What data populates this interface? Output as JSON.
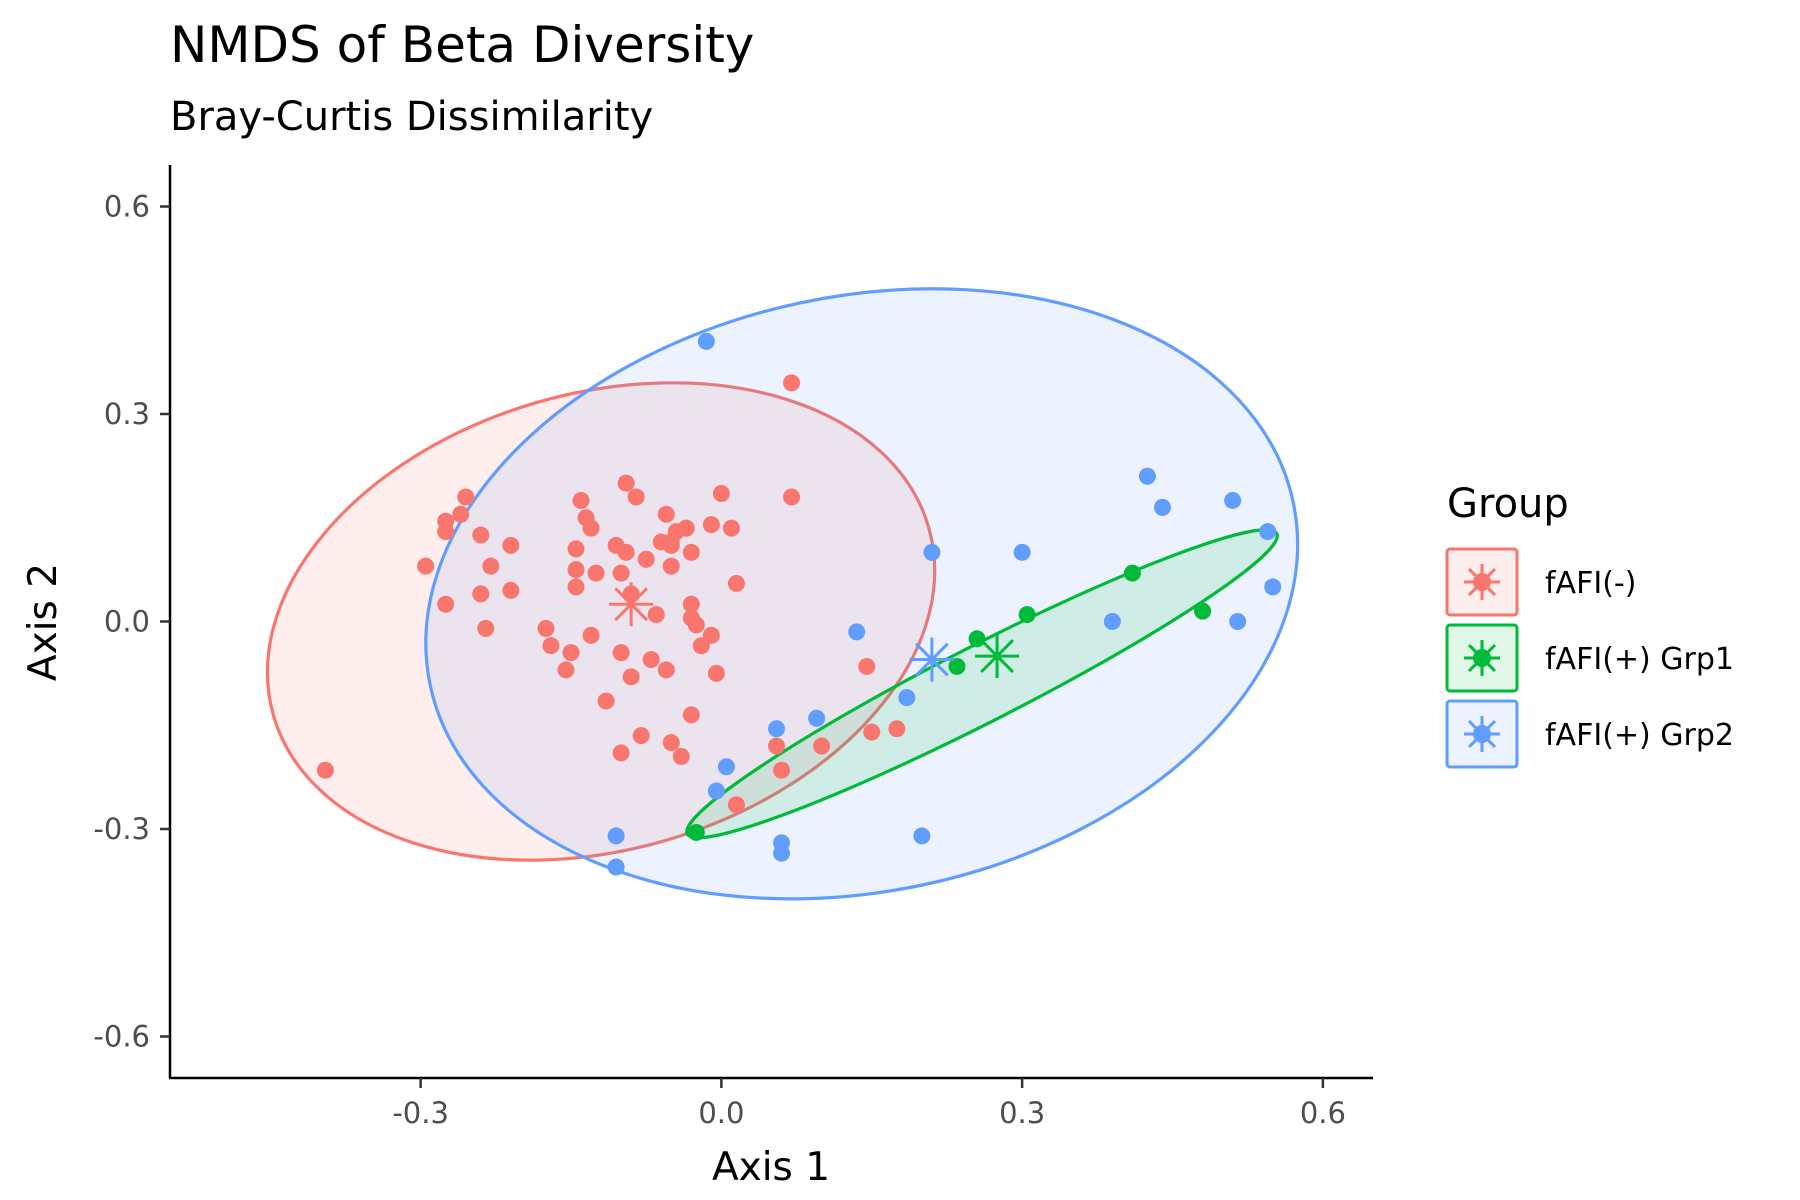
{
  "chart_data": {
    "type": "scatter",
    "title": "NMDS of Beta Diversity",
    "subtitle": "Bray-Curtis Dissimilarity",
    "xlabel": "Axis 1",
    "ylabel": "Axis 2",
    "xlim": [
      -0.55,
      0.65
    ],
    "ylim": [
      -0.66,
      0.66
    ],
    "xticks": [
      -0.3,
      0.0,
      0.3,
      0.6
    ],
    "xtick_labels": [
      "-0.3",
      "0.0",
      "0.3",
      "0.6"
    ],
    "yticks": [
      -0.6,
      -0.3,
      0.0,
      0.3,
      0.6
    ],
    "ytick_labels": [
      "-0.6",
      "-0.3",
      "0.0",
      "0.3",
      "0.6"
    ],
    "grid": false,
    "legend": {
      "title": "Group",
      "position": "right"
    },
    "series": [
      {
        "name": "fAFI(-)",
        "color": "#F8766D",
        "centroid": [
          -0.09,
          0.025
        ],
        "ellipse": {
          "center": [
            -0.12,
            0.0
          ],
          "rx": 0.34,
          "ry": 0.33,
          "angle_deg": 16
        },
        "points": [
          [
            -0.295,
            0.08
          ],
          [
            -0.275,
            0.145
          ],
          [
            -0.275,
            0.13
          ],
          [
            -0.26,
            0.155
          ],
          [
            -0.255,
            0.18
          ],
          [
            -0.24,
            0.125
          ],
          [
            -0.23,
            0.08
          ],
          [
            -0.21,
            0.11
          ],
          [
            -0.275,
            0.025
          ],
          [
            -0.24,
            0.04
          ],
          [
            -0.235,
            -0.01
          ],
          [
            -0.21,
            0.045
          ],
          [
            -0.175,
            -0.01
          ],
          [
            -0.17,
            -0.035
          ],
          [
            -0.155,
            -0.07
          ],
          [
            -0.15,
            -0.045
          ],
          [
            -0.145,
            0.105
          ],
          [
            -0.145,
            0.075
          ],
          [
            -0.145,
            0.05
          ],
          [
            -0.14,
            0.175
          ],
          [
            -0.135,
            0.15
          ],
          [
            -0.13,
            0.135
          ],
          [
            -0.13,
            -0.02
          ],
          [
            -0.125,
            0.07
          ],
          [
            -0.115,
            -0.115
          ],
          [
            -0.105,
            0.11
          ],
          [
            -0.1,
            0.07
          ],
          [
            -0.1,
            -0.045
          ],
          [
            -0.095,
            0.2
          ],
          [
            -0.095,
            0.1
          ],
          [
            -0.09,
            0.04
          ],
          [
            -0.09,
            -0.08
          ],
          [
            -0.085,
            0.18
          ],
          [
            -0.08,
            -0.165
          ],
          [
            -0.1,
            -0.19
          ],
          [
            -0.075,
            0.09
          ],
          [
            -0.07,
            -0.055
          ],
          [
            -0.065,
            0.01
          ],
          [
            -0.06,
            0.115
          ],
          [
            -0.055,
            0.155
          ],
          [
            -0.055,
            -0.07
          ],
          [
            -0.05,
            -0.175
          ],
          [
            -0.05,
            0.08
          ],
          [
            -0.05,
            0.11
          ],
          [
            -0.045,
            0.13
          ],
          [
            -0.04,
            -0.195
          ],
          [
            -0.035,
            0.135
          ],
          [
            -0.03,
            0.1
          ],
          [
            -0.03,
            0.025
          ],
          [
            -0.03,
            0.005
          ],
          [
            -0.025,
            -0.005
          ],
          [
            -0.03,
            -0.135
          ],
          [
            -0.02,
            -0.035
          ],
          [
            -0.01,
            -0.02
          ],
          [
            -0.01,
            0.14
          ],
          [
            -0.005,
            -0.075
          ],
          [
            0.0,
            0.185
          ],
          [
            0.01,
            0.135
          ],
          [
            0.015,
            0.055
          ],
          [
            0.07,
            0.345
          ],
          [
            0.07,
            0.18
          ],
          [
            -0.395,
            -0.215
          ],
          [
            0.055,
            -0.18
          ],
          [
            0.06,
            -0.215
          ],
          [
            0.015,
            -0.265
          ],
          [
            0.1,
            -0.18
          ],
          [
            0.145,
            -0.065
          ],
          [
            0.15,
            -0.16
          ],
          [
            0.175,
            -0.155
          ],
          [
            -0.05,
            0.115
          ]
        ]
      },
      {
        "name": "fAFI(+) Grp1",
        "color": "#00BA38",
        "centroid": [
          0.275,
          -0.05
        ],
        "ellipse": {
          "center": [
            0.26,
            -0.09
          ],
          "rx": 0.33,
          "ry": 0.055,
          "angle_deg": 27
        },
        "points": [
          [
            -0.025,
            -0.305
          ],
          [
            0.235,
            -0.065
          ],
          [
            0.255,
            -0.025
          ],
          [
            0.305,
            0.01
          ],
          [
            0.41,
            0.07
          ],
          [
            0.48,
            0.015
          ]
        ]
      },
      {
        "name": "fAFI(+) Grp2",
        "color": "#619CFF",
        "centroid": [
          0.21,
          -0.055
        ],
        "ellipse": {
          "center": [
            0.14,
            0.04
          ],
          "rx": 0.44,
          "ry": 0.43,
          "angle_deg": 12
        },
        "points": [
          [
            -0.015,
            0.405
          ],
          [
            -0.105,
            -0.31
          ],
          [
            -0.105,
            -0.355
          ],
          [
            0.055,
            -0.155
          ],
          [
            0.06,
            -0.32
          ],
          [
            0.06,
            -0.335
          ],
          [
            0.095,
            -0.14
          ],
          [
            0.005,
            -0.21
          ],
          [
            -0.005,
            -0.245
          ],
          [
            0.135,
            -0.015
          ],
          [
            0.185,
            -0.11
          ],
          [
            0.2,
            -0.31
          ],
          [
            0.21,
            0.1
          ],
          [
            0.3,
            0.1
          ],
          [
            0.39,
            0.0
          ],
          [
            0.425,
            0.21
          ],
          [
            0.44,
            0.165
          ],
          [
            0.51,
            0.175
          ],
          [
            0.515,
            0.0
          ],
          [
            0.545,
            0.13
          ],
          [
            0.55,
            0.05
          ]
        ]
      }
    ]
  }
}
